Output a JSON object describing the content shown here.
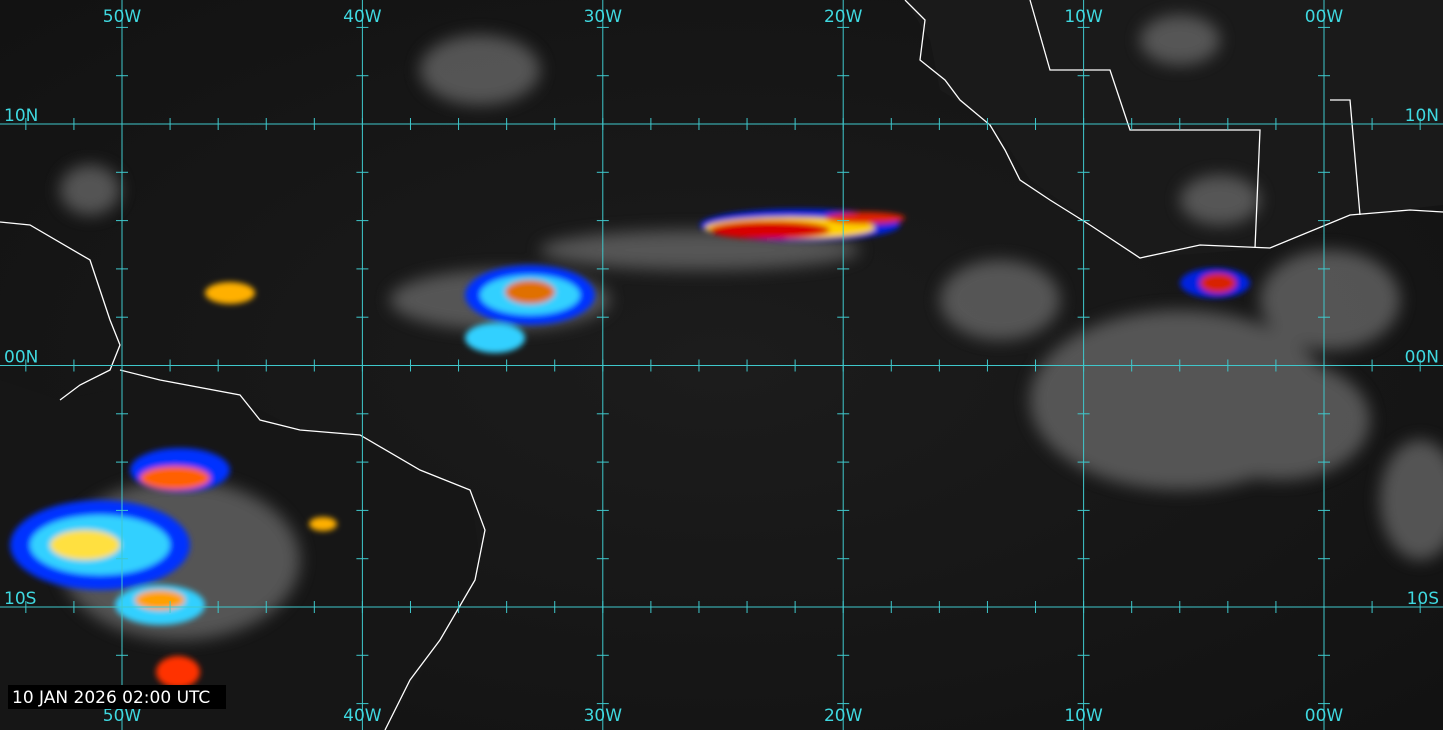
{
  "map": {
    "longitude_labels": [
      "50W",
      "40W",
      "30W",
      "20W",
      "10W",
      "00W"
    ],
    "latitude_labels": [
      "10N",
      "00N",
      "10S"
    ],
    "timestamp": "10 JAN 2026 02:00 UTC"
  }
}
